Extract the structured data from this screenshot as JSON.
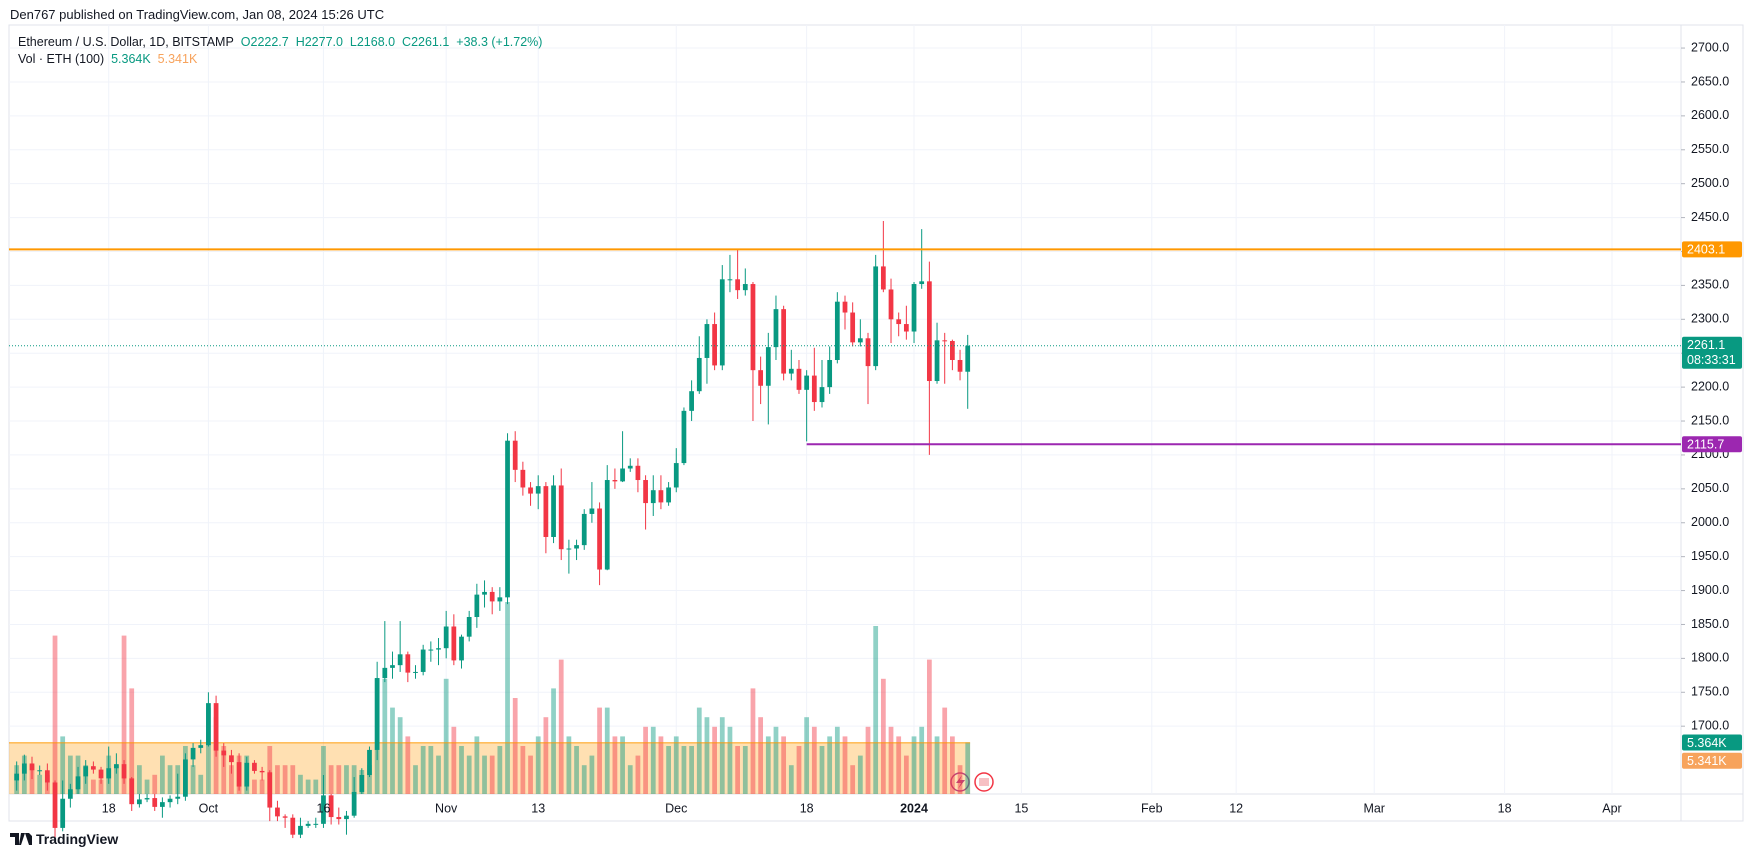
{
  "header": {
    "published": "Den767 published on TradingView.com, Jan 08, 2024 15:26 UTC",
    "footer": "TradingView"
  },
  "chart_data": {
    "type": "candlestick",
    "title": "Ethereum / U.S. Dollar, 1D, BITSTAMP",
    "legend_labels": [
      "O2222.7",
      "H2277.0",
      "L2168.0",
      "C2261.1",
      "+38.3 (+1.72%)"
    ],
    "volume_title": "Vol · ETH (100)",
    "volume_last_label": "5.364K",
    "volume_ma": 5.341,
    "volume_ma_label": "5.341K",
    "countdown": "08:33:31",
    "up_color": "#089981",
    "down_color": "#f23645",
    "x": [
      "2023-09-06",
      "2023-09-07",
      "2023-09-08",
      "2023-09-09",
      "2023-09-10",
      "2023-09-11",
      "2023-09-12",
      "2023-09-13",
      "2023-09-14",
      "2023-09-15",
      "2023-09-16",
      "2023-09-17",
      "2023-09-18",
      "2023-09-19",
      "2023-09-20",
      "2023-09-21",
      "2023-09-22",
      "2023-09-23",
      "2023-09-24",
      "2023-09-25",
      "2023-09-26",
      "2023-09-27",
      "2023-09-28",
      "2023-09-29",
      "2023-09-30",
      "2023-10-01",
      "2023-10-02",
      "2023-10-03",
      "2023-10-04",
      "2023-10-05",
      "2023-10-06",
      "2023-10-07",
      "2023-10-08",
      "2023-10-09",
      "2023-10-10",
      "2023-10-11",
      "2023-10-12",
      "2023-10-13",
      "2023-10-14",
      "2023-10-15",
      "2023-10-16",
      "2023-10-17",
      "2023-10-18",
      "2023-10-19",
      "2023-10-20",
      "2023-10-21",
      "2023-10-22",
      "2023-10-23",
      "2023-10-24",
      "2023-10-25",
      "2023-10-26",
      "2023-10-27",
      "2023-10-28",
      "2023-10-29",
      "2023-10-30",
      "2023-10-31",
      "2023-11-01",
      "2023-11-02",
      "2023-11-03",
      "2023-11-04",
      "2023-11-05",
      "2023-11-06",
      "2023-11-07",
      "2023-11-08",
      "2023-11-09",
      "2023-11-10",
      "2023-11-11",
      "2023-11-12",
      "2023-11-13",
      "2023-11-14",
      "2023-11-15",
      "2023-11-16",
      "2023-11-17",
      "2023-11-18",
      "2023-11-19",
      "2023-11-20",
      "2023-11-21",
      "2023-11-22",
      "2023-11-23",
      "2023-11-24",
      "2023-11-25",
      "2023-11-26",
      "2023-11-27",
      "2023-11-28",
      "2023-11-29",
      "2023-11-30",
      "2023-12-01",
      "2023-12-02",
      "2023-12-03",
      "2023-12-04",
      "2023-12-05",
      "2023-12-06",
      "2023-12-07",
      "2023-12-08",
      "2023-12-09",
      "2023-12-10",
      "2023-12-11",
      "2023-12-12",
      "2023-12-13",
      "2023-12-14",
      "2023-12-15",
      "2023-12-16",
      "2023-12-17",
      "2023-12-18",
      "2023-12-19",
      "2023-12-20",
      "2023-12-21",
      "2023-12-22",
      "2023-12-23",
      "2023-12-24",
      "2023-12-25",
      "2023-12-26",
      "2023-12-27",
      "2023-12-28",
      "2023-12-29",
      "2023-12-30",
      "2023-12-31",
      "2024-01-01",
      "2024-01-02",
      "2024-01-03",
      "2024-01-04",
      "2024-01-05",
      "2024-01-06",
      "2024-01-07",
      "2024-01-08"
    ],
    "open": [
      1620,
      1630,
      1645,
      1635,
      1635,
      1617,
      1550,
      1593,
      1607,
      1626,
      1641,
      1636,
      1623,
      1638,
      1644,
      1623,
      1585,
      1592,
      1594,
      1581,
      1588,
      1593,
      1596,
      1651,
      1668,
      1672,
      1734,
      1664,
      1657,
      1647,
      1611,
      1646,
      1634,
      1632,
      1580,
      1567,
      1565,
      1540,
      1553,
      1556,
      1556,
      1598,
      1566,
      1563,
      1568,
      1603,
      1628,
      1665,
      1771,
      1786,
      1790,
      1806,
      1779,
      1780,
      1813,
      1813,
      1815,
      1847,
      1797,
      1832,
      1861,
      1894,
      1898,
      1884,
      1890,
      2121,
      2078,
      2052,
      2043,
      2054,
      1979,
      2055,
      1961,
      1962,
      1967,
      2013,
      2021,
      1931,
      2063,
      2061,
      2080,
      2084,
      2063,
      2029,
      2048,
      2030,
      2052,
      2088,
      2165,
      2194,
      2243,
      2293,
      2232,
      2359,
      2359,
      2343,
      2352,
      2225,
      2202,
      2259,
      2315,
      2220,
      2227,
      2196,
      2217,
      2178,
      2200,
      2240,
      2326,
      2310,
      2266,
      2272,
      2231,
      2378,
      2344,
      2300,
      2293,
      2282,
      2352,
      2356,
      2209,
      2269,
      2268,
      2240,
      2222.7
    ],
    "high": [
      1648,
      1658,
      1655,
      1642,
      1645,
      1620,
      1620,
      1615,
      1640,
      1650,
      1648,
      1640,
      1670,
      1660,
      1650,
      1625,
      1600,
      1600,
      1600,
      1595,
      1598,
      1630,
      1660,
      1675,
      1680,
      1750,
      1745,
      1675,
      1665,
      1660,
      1655,
      1650,
      1640,
      1635,
      1590,
      1570,
      1570,
      1565,
      1560,
      1565,
      1628,
      1600,
      1580,
      1575,
      1625,
      1638,
      1670,
      1795,
      1855,
      1810,
      1855,
      1810,
      1790,
      1820,
      1825,
      1830,
      1870,
      1865,
      1835,
      1870,
      1910,
      1915,
      1905,
      1905,
      2132,
      2135,
      2090,
      2060,
      2070,
      2060,
      2070,
      2080,
      1975,
      1975,
      2020,
      2060,
      2030,
      2085,
      2080,
      2135,
      2095,
      2095,
      2070,
      2070,
      2070,
      2060,
      2110,
      2170,
      2210,
      2275,
      2300,
      2310,
      2380,
      2395,
      2403,
      2375,
      2355,
      2245,
      2280,
      2335,
      2320,
      2255,
      2240,
      2225,
      2258,
      2240,
      2260,
      2340,
      2335,
      2325,
      2300,
      2280,
      2395,
      2445,
      2360,
      2310,
      2320,
      2355,
      2433,
      2385,
      2295,
      2280,
      2270,
      2255,
      2277.0
    ],
    "low": [
      1605,
      1620,
      1622,
      1628,
      1605,
      1530,
      1545,
      1580,
      1600,
      1615,
      1630,
      1615,
      1615,
      1630,
      1615,
      1575,
      1580,
      1588,
      1575,
      1565,
      1580,
      1585,
      1590,
      1640,
      1660,
      1670,
      1655,
      1640,
      1630,
      1605,
      1605,
      1630,
      1620,
      1560,
      1560,
      1550,
      1535,
      1535,
      1550,
      1550,
      1550,
      1555,
      1555,
      1540,
      1565,
      1600,
      1625,
      1650,
      1765,
      1770,
      1780,
      1765,
      1770,
      1775,
      1795,
      1790,
      1800,
      1790,
      1785,
      1825,
      1845,
      1875,
      1865,
      1870,
      1880,
      2060,
      2040,
      2025,
      2020,
      1955,
      1970,
      1945,
      1925,
      1945,
      1960,
      2000,
      1908,
      1930,
      2050,
      2060,
      2075,
      2045,
      1990,
      2010,
      2020,
      2025,
      2045,
      2085,
      2150,
      2190,
      2205,
      2225,
      2225,
      2340,
      2330,
      2335,
      2150,
      2175,
      2145,
      2240,
      2210,
      2210,
      2190,
      2120,
      2165,
      2170,
      2190,
      2235,
      2285,
      2260,
      2260,
      2175,
      2225,
      2340,
      2265,
      2275,
      2270,
      2265,
      2345,
      2100,
      2205,
      2205,
      2225,
      2210,
      2168.0
    ],
    "close": [
      1630,
      1645,
      1635,
      1635,
      1617,
      1550,
      1593,
      1607,
      1626,
      1641,
      1636,
      1623,
      1638,
      1644,
      1623,
      1585,
      1592,
      1594,
      1581,
      1588,
      1593,
      1596,
      1651,
      1668,
      1672,
      1734,
      1664,
      1657,
      1647,
      1611,
      1646,
      1634,
      1632,
      1580,
      1567,
      1565,
      1540,
      1553,
      1556,
      1556,
      1598,
      1566,
      1563,
      1568,
      1603,
      1628,
      1665,
      1771,
      1786,
      1790,
      1806,
      1779,
      1780,
      1813,
      1813,
      1815,
      1847,
      1797,
      1832,
      1861,
      1894,
      1898,
      1884,
      1890,
      2121,
      2078,
      2052,
      2043,
      2054,
      1979,
      2055,
      1961,
      1962,
      1967,
      2013,
      2021,
      1931,
      2063,
      2061,
      2080,
      2084,
      2063,
      2029,
      2048,
      2030,
      2052,
      2088,
      2165,
      2194,
      2243,
      2293,
      2232,
      2359,
      2359,
      2343,
      2352,
      2225,
      2202,
      2259,
      2315,
      2220,
      2227,
      2196,
      2217,
      2178,
      2200,
      2240,
      2326,
      2310,
      2266,
      2272,
      2231,
      2378,
      2344,
      2300,
      2293,
      2282,
      2352,
      2356,
      2209,
      2269,
      2268,
      2240,
      2222.7,
      2261.1
    ],
    "volume": [
      3,
      4,
      3,
      2,
      2,
      16.5,
      6,
      4,
      4,
      3,
      1.5,
      1.5,
      4,
      3,
      16.5,
      11,
      3,
      1.5,
      2,
      4,
      3,
      3,
      5,
      3,
      2,
      9,
      8,
      5,
      3,
      4,
      4,
      1.5,
      1.5,
      5,
      3,
      3,
      3,
      2,
      1.5,
      1.5,
      5,
      3,
      3,
      3,
      3,
      2.5,
      3,
      12,
      12,
      9,
      8,
      6,
      3,
      5,
      5,
      4,
      12,
      7,
      5,
      4,
      6,
      4,
      4,
      5,
      20,
      10,
      5,
      4,
      6,
      8,
      11,
      14,
      6,
      5,
      3,
      4,
      9,
      9,
      6,
      6,
      3,
      4,
      7,
      7,
      6,
      5,
      6,
      5,
      5,
      9,
      8,
      7,
      8,
      7,
      5,
      5,
      11,
      8,
      6,
      7,
      6,
      3,
      5,
      8,
      7,
      5,
      6,
      7,
      6,
      3,
      4,
      7,
      17.5,
      12,
      7,
      6,
      4,
      6,
      7,
      14,
      6,
      9,
      6,
      3,
      5.364
    ],
    "xlim": [
      "2023-09-05",
      "2024-04-10"
    ],
    "xticks": [
      {
        "value": "2023-09-18",
        "label": "18"
      },
      {
        "value": "2023-10-01",
        "label": "Oct"
      },
      {
        "value": "2023-10-16",
        "label": "16"
      },
      {
        "value": "2023-11-01",
        "label": "Nov"
      },
      {
        "value": "2023-11-13",
        "label": "13"
      },
      {
        "value": "2023-12-01",
        "label": "Dec"
      },
      {
        "value": "2023-12-18",
        "label": "18"
      },
      {
        "value": "2024-01-01",
        "label": "2024"
      },
      {
        "value": "2024-01-15",
        "label": "15"
      },
      {
        "value": "2024-02-01",
        "label": "Feb"
      },
      {
        "value": "2024-02-12",
        "label": "12"
      },
      {
        "value": "2024-03-01",
        "label": "Mar"
      },
      {
        "value": "2024-03-18",
        "label": "18"
      },
      {
        "value": "2024-04-01",
        "label": "Apr"
      }
    ],
    "ylim": [
      1600,
      2734
    ],
    "yticks": [
      {
        "value": 1700,
        "label": "1700.0"
      },
      {
        "value": 1750,
        "label": "1750.0"
      },
      {
        "value": 1800,
        "label": "1800.0"
      },
      {
        "value": 1850,
        "label": "1850.0"
      },
      {
        "value": 1900,
        "label": "1900.0"
      },
      {
        "value": 1950,
        "label": "1950.0"
      },
      {
        "value": 2000,
        "label": "2000.0"
      },
      {
        "value": 2050,
        "label": "2050.0"
      },
      {
        "value": 2100,
        "label": "2100.0"
      },
      {
        "value": 2150,
        "label": "2150.0"
      },
      {
        "value": 2200,
        "label": "2200.0"
      },
      {
        "value": 2250,
        "label": "2250.0"
      },
      {
        "value": 2300,
        "label": "2300.0"
      },
      {
        "value": 2350,
        "label": "2350.0"
      },
      {
        "value": 2400,
        "label": "2400.0"
      },
      {
        "value": 2450,
        "label": "2450.0"
      },
      {
        "value": 2500,
        "label": "2500.0"
      },
      {
        "value": 2550,
        "label": "2550.0"
      },
      {
        "value": 2600,
        "label": "2600.0"
      },
      {
        "value": 2650,
        "label": "2650.0"
      },
      {
        "value": 2700,
        "label": "2700.0"
      }
    ],
    "grid": true,
    "levels": [
      {
        "value": 2403.1,
        "color": "#ff9800"
      },
      {
        "value": 2115.7,
        "color": "#9c27b0",
        "start": "2023-12-18"
      }
    ]
  }
}
